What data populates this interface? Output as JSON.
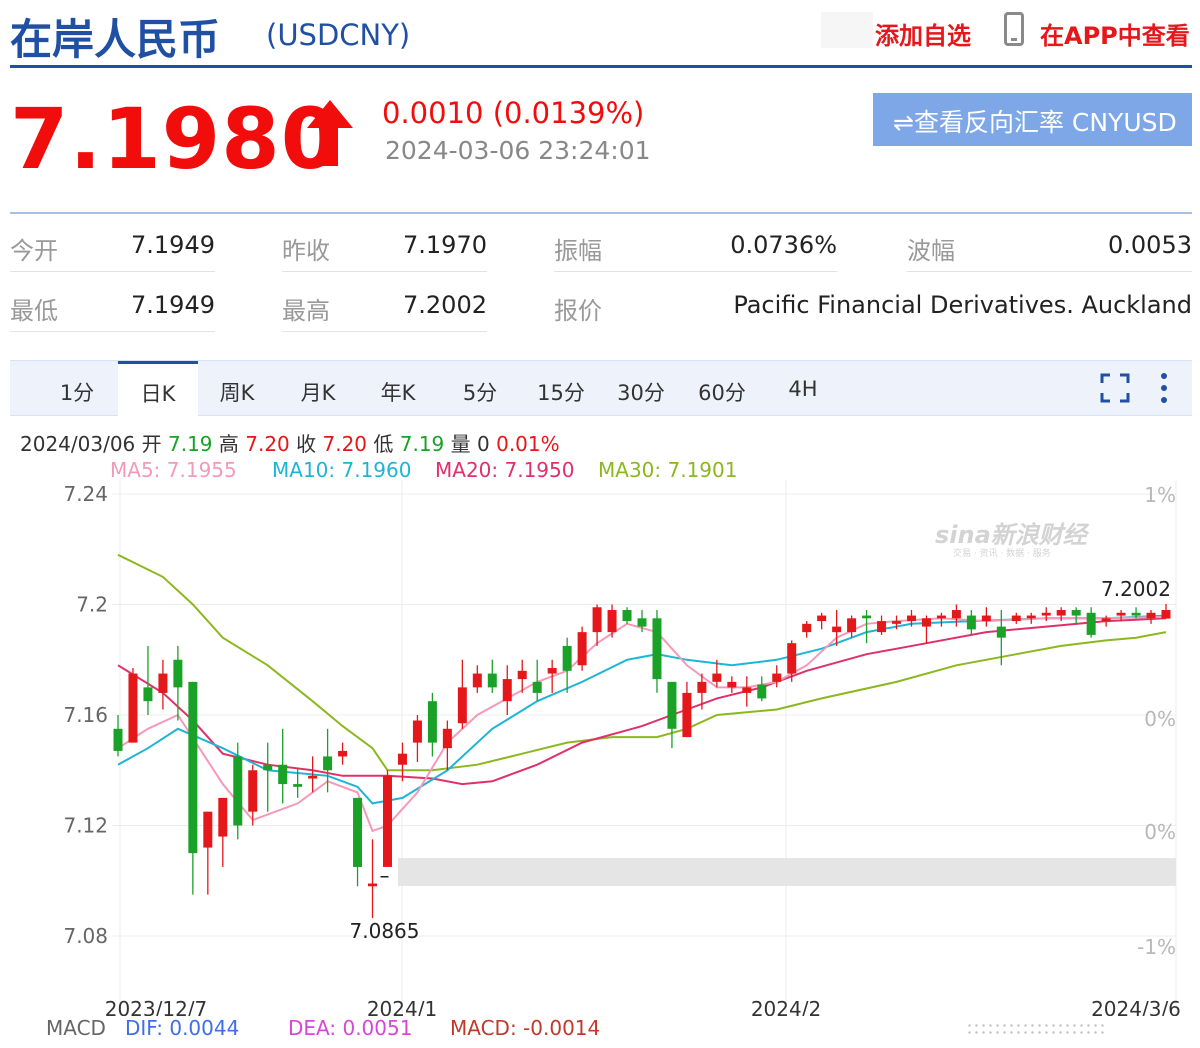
{
  "header": {
    "title": "在岸人民币",
    "code": "(USDCNY)",
    "add_favorite": "添加自选",
    "app_view": "在APP中查看"
  },
  "quote": {
    "price": "7.1980",
    "change": "0.0010 (0.0139%)",
    "datetime": "2024-03-06 23:24:01",
    "reverse_button": "⇌查看反向汇率 CNYUSD",
    "direction": "up",
    "up_color": "#f20d0d"
  },
  "stats": [
    {
      "label": "今开",
      "value": "7.1949"
    },
    {
      "label": "昨收",
      "value": "7.1970"
    },
    {
      "label": "振幅",
      "value": "0.0736%"
    },
    {
      "label": "波幅",
      "value": "0.0053"
    },
    {
      "label": "最低",
      "value": "7.1949"
    },
    {
      "label": "最高",
      "value": "7.2002"
    },
    {
      "label": "报价",
      "value": "Pacific Financial Derivatives. Auckland"
    }
  ],
  "tabs": [
    "1分",
    "日K",
    "周K",
    "月K",
    "年K",
    "5分",
    "15分",
    "30分",
    "60分",
    "4H"
  ],
  "active_tab": "日K",
  "ohlc": {
    "date": "2024/03/06",
    "open_label": "开",
    "open": "7.19",
    "high_label": "高",
    "high": "7.20",
    "close_label": "收",
    "close": "7.20",
    "low_label": "低",
    "low": "7.19",
    "vol_label": "量",
    "vol": "0",
    "pct": "0.01%"
  },
  "ma_legend": {
    "ma5": "MA5: 7.1955",
    "ma10": "MA10: 7.1960",
    "ma20": "MA20: 7.1950",
    "ma30": "MA30: 7.1901"
  },
  "macd": {
    "label": "MACD",
    "dif": "DIF: 0.0044",
    "dea": "DEA: 0.0051",
    "macd": "MACD: -0.0014"
  },
  "chart_data": {
    "type": "candlestick",
    "y_ticks": [
      "7.24",
      "7.2",
      "7.16",
      "7.12",
      "7.08"
    ],
    "y_right_ticks": [
      "1%",
      "0%",
      "0%",
      "-1%"
    ],
    "x_labels": [
      "2023/12/7",
      "2024/1",
      "2024/2",
      "2024/3/6"
    ],
    "ylim": [
      7.075,
      7.245
    ],
    "annotations": {
      "max": "7.2002",
      "min": "7.0865"
    },
    "watermark": "sina新浪财经",
    "watermark_sub": "交易 · 资讯 · 数据 · 服务",
    "colors": {
      "up": "#e4171b",
      "down": "#1aa128",
      "ma5": "#f49ab8",
      "ma10": "#1db5d6",
      "ma20": "#e0306a",
      "ma30": "#8cb81f"
    },
    "candles": [
      {
        "o": 7.155,
        "h": 7.16,
        "l": 7.145,
        "c": 7.147
      },
      {
        "o": 7.15,
        "h": 7.177,
        "l": 7.15,
        "c": 7.175
      },
      {
        "o": 7.17,
        "h": 7.185,
        "l": 7.16,
        "c": 7.165
      },
      {
        "o": 7.168,
        "h": 7.18,
        "l": 7.162,
        "c": 7.175
      },
      {
        "o": 7.18,
        "h": 7.185,
        "l": 7.158,
        "c": 7.17
      },
      {
        "o": 7.172,
        "h": 7.172,
        "l": 7.095,
        "c": 7.11
      },
      {
        "o": 7.112,
        "h": 7.125,
        "l": 7.095,
        "c": 7.125
      },
      {
        "o": 7.116,
        "h": 7.13,
        "l": 7.105,
        "c": 7.13
      },
      {
        "o": 7.145,
        "h": 7.15,
        "l": 7.115,
        "c": 7.12
      },
      {
        "o": 7.125,
        "h": 7.142,
        "l": 7.12,
        "c": 7.14
      },
      {
        "o": 7.142,
        "h": 7.15,
        "l": 7.125,
        "c": 7.14
      },
      {
        "o": 7.142,
        "h": 7.155,
        "l": 7.128,
        "c": 7.135
      },
      {
        "o": 7.135,
        "h": 7.141,
        "l": 7.13,
        "c": 7.134
      },
      {
        "o": 7.137,
        "h": 7.145,
        "l": 7.132,
        "c": 7.138
      },
      {
        "o": 7.145,
        "h": 7.155,
        "l": 7.132,
        "c": 7.14
      },
      {
        "o": 7.145,
        "h": 7.15,
        "l": 7.142,
        "c": 7.147
      },
      {
        "o": 7.13,
        "h": 7.13,
        "l": 7.098,
        "c": 7.105
      },
      {
        "o": 7.098,
        "h": 7.115,
        "l": 7.0865,
        "c": 7.099
      },
      {
        "o": 7.105,
        "h": 7.14,
        "l": 7.105,
        "c": 7.138
      },
      {
        "o": 7.142,
        "h": 7.15,
        "l": 7.136,
        "c": 7.146
      },
      {
        "o": 7.15,
        "h": 7.16,
        "l": 7.143,
        "c": 7.158
      },
      {
        "o": 7.165,
        "h": 7.168,
        "l": 7.145,
        "c": 7.15
      },
      {
        "o": 7.148,
        "h": 7.158,
        "l": 7.14,
        "c": 7.155
      },
      {
        "o": 7.157,
        "h": 7.18,
        "l": 7.155,
        "c": 7.17
      },
      {
        "o": 7.17,
        "h": 7.178,
        "l": 7.168,
        "c": 7.175
      },
      {
        "o": 7.175,
        "h": 7.18,
        "l": 7.168,
        "c": 7.17
      },
      {
        "o": 7.165,
        "h": 7.178,
        "l": 7.16,
        "c": 7.173
      },
      {
        "o": 7.173,
        "h": 7.18,
        "l": 7.168,
        "c": 7.176
      },
      {
        "o": 7.172,
        "h": 7.18,
        "l": 7.165,
        "c": 7.168
      },
      {
        "o": 7.175,
        "h": 7.18,
        "l": 7.168,
        "c": 7.177
      },
      {
        "o": 7.185,
        "h": 7.188,
        "l": 7.168,
        "c": 7.176
      },
      {
        "o": 7.178,
        "h": 7.192,
        "l": 7.176,
        "c": 7.19
      },
      {
        "o": 7.19,
        "h": 7.2,
        "l": 7.185,
        "c": 7.199
      },
      {
        "o": 7.19,
        "h": 7.2,
        "l": 7.188,
        "c": 7.198
      },
      {
        "o": 7.198,
        "h": 7.199,
        "l": 7.193,
        "c": 7.194
      },
      {
        "o": 7.195,
        "h": 7.198,
        "l": 7.19,
        "c": 7.192
      },
      {
        "o": 7.195,
        "h": 7.198,
        "l": 7.168,
        "c": 7.173
      },
      {
        "o": 7.172,
        "h": 7.172,
        "l": 7.148,
        "c": 7.155
      },
      {
        "o": 7.152,
        "h": 7.172,
        "l": 7.152,
        "c": 7.168
      },
      {
        "o": 7.168,
        "h": 7.175,
        "l": 7.162,
        "c": 7.172
      },
      {
        "o": 7.172,
        "h": 7.18,
        "l": 7.17,
        "c": 7.175
      },
      {
        "o": 7.17,
        "h": 7.174,
        "l": 7.168,
        "c": 7.172
      },
      {
        "o": 7.168,
        "h": 7.174,
        "l": 7.163,
        "c": 7.17
      },
      {
        "o": 7.171,
        "h": 7.174,
        "l": 7.165,
        "c": 7.166
      },
      {
        "o": 7.172,
        "h": 7.178,
        "l": 7.17,
        "c": 7.175
      },
      {
        "o": 7.175,
        "h": 7.187,
        "l": 7.172,
        "c": 7.186
      },
      {
        "o": 7.19,
        "h": 7.194,
        "l": 7.188,
        "c": 7.193
      },
      {
        "o": 7.194,
        "h": 7.197,
        "l": 7.191,
        "c": 7.196
      },
      {
        "o": 7.19,
        "h": 7.198,
        "l": 7.185,
        "c": 7.192
      },
      {
        "o": 7.19,
        "h": 7.196,
        "l": 7.188,
        "c": 7.195
      },
      {
        "o": 7.196,
        "h": 7.198,
        "l": 7.186,
        "c": 7.195
      },
      {
        "o": 7.19,
        "h": 7.196,
        "l": 7.189,
        "c": 7.194
      },
      {
        "o": 7.193,
        "h": 7.196,
        "l": 7.191,
        "c": 7.194
      },
      {
        "o": 7.194,
        "h": 7.198,
        "l": 7.192,
        "c": 7.196
      },
      {
        "o": 7.192,
        "h": 7.196,
        "l": 7.186,
        "c": 7.195
      },
      {
        "o": 7.195,
        "h": 7.197,
        "l": 7.192,
        "c": 7.196
      },
      {
        "o": 7.195,
        "h": 7.2,
        "l": 7.192,
        "c": 7.198
      },
      {
        "o": 7.196,
        "h": 7.198,
        "l": 7.189,
        "c": 7.191
      },
      {
        "o": 7.194,
        "h": 7.199,
        "l": 7.192,
        "c": 7.196
      },
      {
        "o": 7.192,
        "h": 7.198,
        "l": 7.178,
        "c": 7.188
      },
      {
        "o": 7.194,
        "h": 7.197,
        "l": 7.193,
        "c": 7.196
      },
      {
        "o": 7.195,
        "h": 7.197,
        "l": 7.193,
        "c": 7.196
      },
      {
        "o": 7.196,
        "h": 7.199,
        "l": 7.194,
        "c": 7.197
      },
      {
        "o": 7.196,
        "h": 7.199,
        "l": 7.194,
        "c": 7.198
      },
      {
        "o": 7.198,
        "h": 7.199,
        "l": 7.193,
        "c": 7.196
      },
      {
        "o": 7.197,
        "h": 7.199,
        "l": 7.188,
        "c": 7.189
      },
      {
        "o": 7.194,
        "h": 7.196,
        "l": 7.192,
        "c": 7.195
      },
      {
        "o": 7.196,
        "h": 7.198,
        "l": 7.194,
        "c": 7.197
      },
      {
        "o": 7.197,
        "h": 7.199,
        "l": 7.195,
        "c": 7.196
      },
      {
        "o": 7.195,
        "h": 7.198,
        "l": 7.193,
        "c": 7.197
      },
      {
        "o": 7.1949,
        "h": 7.2002,
        "l": 7.1949,
        "c": 7.198
      }
    ],
    "ma5": [
      [
        7.148,
        0
      ],
      [
        7.155,
        2
      ],
      [
        7.16,
        4
      ],
      [
        7.135,
        7
      ],
      [
        7.122,
        9
      ],
      [
        7.128,
        12
      ],
      [
        7.136,
        14
      ],
      [
        7.132,
        16
      ],
      [
        7.118,
        17
      ],
      [
        7.12,
        18
      ],
      [
        7.132,
        20
      ],
      [
        7.15,
        22
      ],
      [
        7.16,
        24
      ],
      [
        7.166,
        26
      ],
      [
        7.172,
        28
      ],
      [
        7.176,
        30
      ],
      [
        7.186,
        32
      ],
      [
        7.193,
        34
      ],
      [
        7.19,
        36
      ],
      [
        7.178,
        38
      ],
      [
        7.17,
        40
      ],
      [
        7.17,
        42
      ],
      [
        7.172,
        44
      ],
      [
        7.178,
        46
      ],
      [
        7.188,
        48
      ],
      [
        7.193,
        50
      ],
      [
        7.194,
        52
      ],
      [
        7.195,
        55
      ],
      [
        7.194,
        58
      ],
      [
        7.195,
        62
      ],
      [
        7.195,
        66
      ],
      [
        7.1955,
        70
      ]
    ],
    "ma10": [
      [
        7.142,
        0
      ],
      [
        7.148,
        2
      ],
      [
        7.155,
        4
      ],
      [
        7.148,
        7
      ],
      [
        7.14,
        10
      ],
      [
        7.138,
        14
      ],
      [
        7.134,
        16
      ],
      [
        7.128,
        17
      ],
      [
        7.13,
        19
      ],
      [
        7.14,
        22
      ],
      [
        7.155,
        25
      ],
      [
        7.165,
        28
      ],
      [
        7.172,
        31
      ],
      [
        7.18,
        34
      ],
      [
        7.182,
        36
      ],
      [
        7.18,
        38
      ],
      [
        7.178,
        41
      ],
      [
        7.18,
        44
      ],
      [
        7.184,
        47
      ],
      [
        7.19,
        50
      ],
      [
        7.193,
        53
      ],
      [
        7.194,
        57
      ],
      [
        7.195,
        62
      ],
      [
        7.195,
        66
      ],
      [
        7.196,
        70
      ]
    ],
    "ma20": [
      [
        7.178,
        0
      ],
      [
        7.168,
        3
      ],
      [
        7.158,
        5
      ],
      [
        7.146,
        7
      ],
      [
        7.142,
        10
      ],
      [
        7.14,
        13
      ],
      [
        7.138,
        15
      ],
      [
        7.138,
        18
      ],
      [
        7.137,
        21
      ],
      [
        7.135,
        23
      ],
      [
        7.136,
        25
      ],
      [
        7.142,
        28
      ],
      [
        7.15,
        31
      ],
      [
        7.156,
        35
      ],
      [
        7.16,
        37
      ],
      [
        7.166,
        40
      ],
      [
        7.17,
        43
      ],
      [
        7.176,
        46
      ],
      [
        7.182,
        50
      ],
      [
        7.186,
        54
      ],
      [
        7.19,
        58
      ],
      [
        7.192,
        62
      ],
      [
        7.194,
        66
      ],
      [
        7.195,
        70
      ]
    ],
    "ma30": [
      [
        7.218,
        0
      ],
      [
        7.21,
        3
      ],
      [
        7.2,
        5
      ],
      [
        7.188,
        7
      ],
      [
        7.178,
        10
      ],
      [
        7.165,
        13
      ],
      [
        7.156,
        15
      ],
      [
        7.148,
        17
      ],
      [
        7.14,
        18
      ],
      [
        7.14,
        21
      ],
      [
        7.142,
        24
      ],
      [
        7.146,
        27
      ],
      [
        7.15,
        30
      ],
      [
        7.152,
        33
      ],
      [
        7.152,
        36
      ],
      [
        7.155,
        38
      ],
      [
        7.16,
        40
      ],
      [
        7.162,
        44
      ],
      [
        7.166,
        47
      ],
      [
        7.172,
        52
      ],
      [
        7.178,
        56
      ],
      [
        7.182,
        60
      ],
      [
        7.185,
        63
      ],
      [
        7.187,
        66
      ],
      [
        7.188,
        68
      ],
      [
        7.19,
        70
      ]
    ]
  }
}
